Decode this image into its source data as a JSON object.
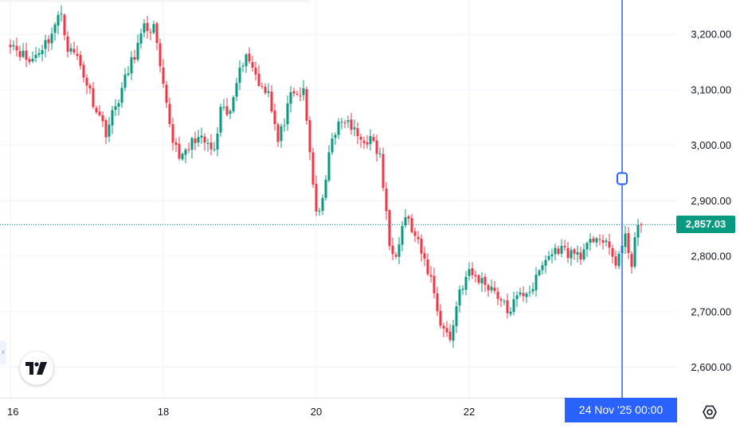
{
  "chart_data": {
    "type": "candlestick",
    "ylim": [
      2545,
      3262
    ],
    "y_ticks": [
      "3,200.00",
      "3,100.00",
      "3,000.00",
      "2,900.00",
      "2,800.00",
      "2,700.00",
      "2,600.00"
    ],
    "y_tick_values": [
      3200,
      3100,
      3000,
      2900,
      2800,
      2700,
      2600
    ],
    "x_ticks": [
      "16",
      "18",
      "20",
      "22"
    ],
    "x_tick_index": [
      0,
      48,
      96,
      144
    ],
    "current_price": 2857.03,
    "current_price_label": "2,857.03",
    "crosshair_label": "24 Nov '25  00:00",
    "crosshair_index": 192,
    "crosshair_price": 2940,
    "up_color": "#089981",
    "down_color": "#f23645",
    "crosshair_color": "#2962ff",
    "candle_count": 199,
    "key_closes": [
      [
        0,
        3188
      ],
      [
        6,
        3150
      ],
      [
        12,
        3192
      ],
      [
        16,
        3240
      ],
      [
        18,
        3175
      ],
      [
        21,
        3160
      ],
      [
        26,
        3080
      ],
      [
        30,
        3025
      ],
      [
        34,
        3085
      ],
      [
        38,
        3150
      ],
      [
        42,
        3210
      ],
      [
        45,
        3212
      ],
      [
        48,
        3100
      ],
      [
        51,
        3010
      ],
      [
        54,
        2975
      ],
      [
        58,
        3015
      ],
      [
        62,
        3000
      ],
      [
        64,
        2985
      ],
      [
        66,
        3060
      ],
      [
        69,
        3055
      ],
      [
        72,
        3150
      ],
      [
        75,
        3160
      ],
      [
        78,
        3110
      ],
      [
        81,
        3100
      ],
      [
        84,
        3005
      ],
      [
        88,
        3085
      ],
      [
        92,
        3095
      ],
      [
        96,
        2880
      ],
      [
        98,
        2895
      ],
      [
        101,
        3020
      ],
      [
        105,
        3045
      ],
      [
        110,
        3010
      ],
      [
        113,
        3010
      ],
      [
        116,
        2980
      ],
      [
        119,
        2820
      ],
      [
        121,
        2810
      ],
      [
        124,
        2875
      ],
      [
        128,
        2820
      ],
      [
        132,
        2760
      ],
      [
        135,
        2680
      ],
      [
        138,
        2650
      ],
      [
        141,
        2740
      ],
      [
        144,
        2770
      ],
      [
        148,
        2755
      ],
      [
        152,
        2740
      ],
      [
        156,
        2700
      ],
      [
        160,
        2730
      ],
      [
        164,
        2745
      ],
      [
        168,
        2795
      ],
      [
        172,
        2815
      ],
      [
        176,
        2805
      ],
      [
        180,
        2805
      ],
      [
        184,
        2840
      ],
      [
        188,
        2810
      ],
      [
        190,
        2790
      ],
      [
        193,
        2830
      ],
      [
        195,
        2790
      ],
      [
        196,
        2835
      ],
      [
        198,
        2857
      ]
    ]
  }
}
